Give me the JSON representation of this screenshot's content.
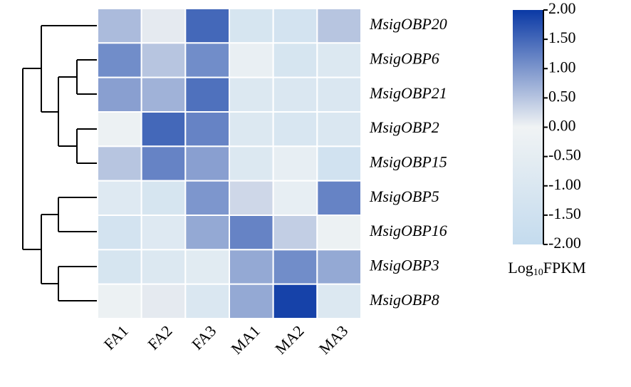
{
  "chart_data": {
    "type": "heatmap",
    "rows": [
      "MsigOBP20",
      "MsigOBP6",
      "MsigOBP21",
      "MsigOBP2",
      "MsigOBP15",
      "MsigOBP5",
      "MsigOBP16",
      "MsigOBP3",
      "MsigOBP8"
    ],
    "columns": [
      "FA1",
      "FA2",
      "FA3",
      "MA1",
      "MA2",
      "MA3"
    ],
    "values": [
      [
        0.6,
        0.1,
        1.5,
        -1.2,
        -1.3,
        0.5
      ],
      [
        1.1,
        0.5,
        1.1,
        -0.3,
        -1.2,
        -0.9
      ],
      [
        0.9,
        0.7,
        1.4,
        -0.9,
        -1.0,
        -1.0
      ],
      [
        -0.2,
        1.5,
        1.2,
        -0.9,
        -1.1,
        -1.0
      ],
      [
        0.5,
        1.2,
        0.9,
        -0.9,
        -0.4,
        -1.4
      ],
      [
        -0.8,
        -1.2,
        1.0,
        0.3,
        -0.4,
        1.2
      ],
      [
        -1.3,
        -0.8,
        0.8,
        1.2,
        0.4,
        -0.2
      ],
      [
        -1.2,
        -0.9,
        -0.7,
        0.8,
        1.1,
        0.8
      ],
      [
        -0.2,
        0.1,
        -1.0,
        0.8,
        1.9,
        -0.9
      ]
    ],
    "colormap": [
      "#c4dbee",
      "#f0f3f4",
      "#0a39a5"
    ],
    "clim": [
      -2,
      2
    ],
    "cticks": [
      {
        "value": 2,
        "label": "2.00"
      },
      {
        "value": 1.5,
        "label": "1.50"
      },
      {
        "value": 1,
        "label": "1.00"
      },
      {
        "value": 0.5,
        "label": "0.50"
      },
      {
        "value": 0,
        "label": "0.00"
      },
      {
        "value": -0.5,
        "label": "-0.50"
      },
      {
        "value": -1,
        "label": "-1.00"
      },
      {
        "value": -1.5,
        "label": "-1.50"
      },
      {
        "value": -2,
        "label": "-2.00"
      }
    ],
    "colorbar_label": [
      "Log",
      "10",
      "FPKM"
    ]
  }
}
